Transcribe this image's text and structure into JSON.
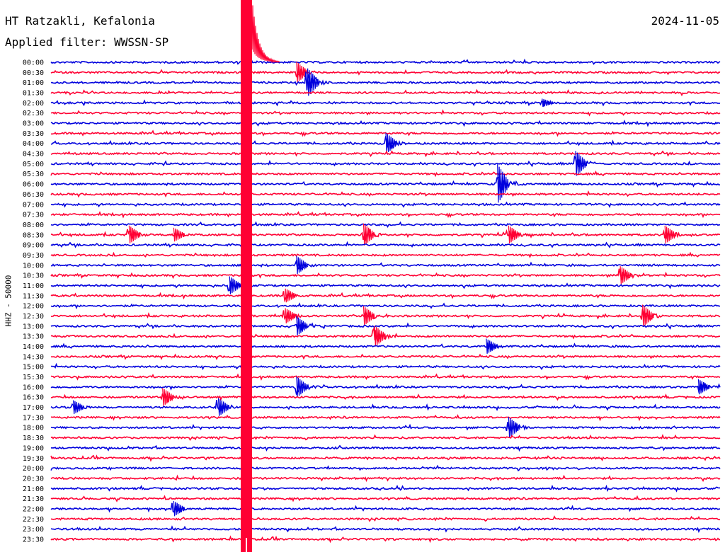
{
  "header": {
    "station": "HT Ratzakli, Kefalonia",
    "date": "2024-11-05",
    "filter": "Applied filter: WWSSN-SP"
  },
  "axis": {
    "ylabel": "HHZ - 50000"
  },
  "colors": {
    "trace_a": "#0000dd",
    "trace_b": "#ff0033",
    "background": "#ffffff"
  },
  "chart_data": {
    "type": "line",
    "xlabel": "",
    "ylabel": "HHZ - 50000",
    "row_labels": [
      "00:00",
      "00:30",
      "01:00",
      "01:30",
      "02:00",
      "02:30",
      "03:00",
      "03:30",
      "04:00",
      "04:30",
      "05:00",
      "05:30",
      "06:00",
      "06:30",
      "07:00",
      "07:30",
      "08:00",
      "08:30",
      "09:00",
      "09:30",
      "10:00",
      "10:30",
      "11:00",
      "11:30",
      "12:00",
      "12:30",
      "13:00",
      "13:30",
      "14:00",
      "14:30",
      "15:00",
      "15:30",
      "16:00",
      "16:30",
      "17:00",
      "17:30",
      "18:00",
      "18:30",
      "19:00",
      "19:30",
      "20:00",
      "20:30",
      "21:00",
      "21:30",
      "22:00",
      "22:30",
      "23:00",
      "23:30"
    ],
    "row_colors": [
      "blue",
      "red"
    ],
    "minutes_per_row": 30,
    "major_event": {
      "row": "00:00",
      "minute": 8.5
    },
    "events": [
      {
        "row": "00:30",
        "minute": 11.0,
        "amp": 1.5
      },
      {
        "row": "01:00",
        "minute": 11.5,
        "amp": 2.0
      },
      {
        "row": "02:00",
        "minute": 22.0,
        "amp": 0.6
      },
      {
        "row": "04:00",
        "minute": 15.0,
        "amp": 1.5
      },
      {
        "row": "05:00",
        "minute": 23.5,
        "amp": 1.8
      },
      {
        "row": "06:00",
        "minute": 20.0,
        "amp": 2.8
      },
      {
        "row": "08:30",
        "minute": 3.5,
        "amp": 1.3
      },
      {
        "row": "08:30",
        "minute": 5.5,
        "amp": 1.0
      },
      {
        "row": "08:30",
        "minute": 14.0,
        "amp": 1.6
      },
      {
        "row": "08:30",
        "minute": 20.5,
        "amp": 1.3
      },
      {
        "row": "08:30",
        "minute": 27.5,
        "amp": 1.3
      },
      {
        "row": "10:00",
        "minute": 11.0,
        "amp": 1.3
      },
      {
        "row": "10:30",
        "minute": 25.5,
        "amp": 1.3
      },
      {
        "row": "11:00",
        "minute": 8.0,
        "amp": 1.3
      },
      {
        "row": "11:30",
        "minute": 10.5,
        "amp": 1.0
      },
      {
        "row": "12:30",
        "minute": 10.5,
        "amp": 1.1
      },
      {
        "row": "12:30",
        "minute": 14.0,
        "amp": 1.4
      },
      {
        "row": "12:30",
        "minute": 26.5,
        "amp": 1.6
      },
      {
        "row": "13:00",
        "minute": 11.0,
        "amp": 1.4
      },
      {
        "row": "13:30",
        "minute": 14.5,
        "amp": 1.5
      },
      {
        "row": "14:00",
        "minute": 19.5,
        "amp": 1.1
      },
      {
        "row": "16:00",
        "minute": 11.0,
        "amp": 1.5
      },
      {
        "row": "16:00",
        "minute": 29.0,
        "amp": 1.1
      },
      {
        "row": "16:30",
        "minute": 5.0,
        "amp": 1.3
      },
      {
        "row": "17:00",
        "minute": 1.0,
        "amp": 1.0
      },
      {
        "row": "17:00",
        "minute": 7.5,
        "amp": 1.3
      },
      {
        "row": "18:00",
        "minute": 20.5,
        "amp": 1.5
      },
      {
        "row": "22:00",
        "minute": 5.5,
        "amp": 1.1
      }
    ]
  }
}
